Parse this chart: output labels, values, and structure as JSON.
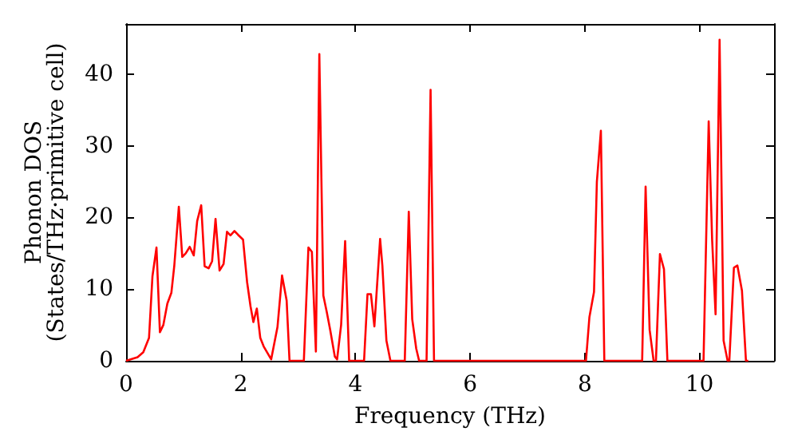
{
  "chart_data": {
    "type": "line",
    "xlabel": "Frequency (THz)",
    "ylabel": "Phonon DOS\n(States/THz·primitive cell)",
    "xlim": [
      0,
      11.3
    ],
    "ylim": [
      0,
      47
    ],
    "xticks": [
      0,
      2,
      4,
      6,
      8,
      10
    ],
    "yticks": [
      0,
      10,
      20,
      30,
      40
    ],
    "marker": "none",
    "series": [
      {
        "color": "#ff0000",
        "x": [
          0,
          0.2,
          0.3,
          0.4,
          0.46,
          0.53,
          0.59,
          0.65,
          0.72,
          0.79,
          0.84,
          0.92,
          0.98,
          1.04,
          1.11,
          1.18,
          1.24,
          1.31,
          1.37,
          1.44,
          1.5,
          1.56,
          1.63,
          1.7,
          1.76,
          1.82,
          1.89,
          1.95,
          2.04,
          2.11,
          2.17,
          2.22,
          2.28,
          2.34,
          2.4,
          2.53,
          2.64,
          2.72,
          2.8,
          2.85,
          3.1,
          3.18,
          3.24,
          3.31,
          3.37,
          3.44,
          3.5,
          3.56,
          3.64,
          3.68,
          3.75,
          3.82,
          3.89,
          4.15,
          4.21,
          4.27,
          4.33,
          4.43,
          4.47,
          4.54,
          4.61,
          4.86,
          4.93,
          4.99,
          5.06,
          5.11,
          5.24,
          5.31,
          5.37,
          8.02,
          8.08,
          8.16,
          8.21,
          8.28,
          8.34,
          9.0,
          9.06,
          9.13,
          9.2,
          9.24,
          9.31,
          9.38,
          9.44,
          10.07,
          10.16,
          10.22,
          10.28,
          10.35,
          10.42,
          10.49,
          10.52,
          10.6,
          10.66,
          10.74,
          10.81,
          10.85
        ],
        "values": [
          0,
          0.5,
          1.2,
          3.2,
          11.8,
          15.8,
          4,
          5,
          8,
          9.5,
          13.2,
          21.5,
          14.5,
          15,
          15.9,
          14.7,
          19.5,
          21.7,
          13.2,
          12.9,
          13.9,
          19.8,
          12.6,
          13.5,
          18,
          17.5,
          18.1,
          17.6,
          16.9,
          11,
          7.6,
          5.4,
          7.3,
          3.2,
          2,
          0.2,
          4.7,
          11.9,
          8.4,
          0,
          0,
          15.8,
          15.2,
          1.3,
          42.8,
          9.1,
          6.8,
          4.3,
          0.6,
          0.2,
          5,
          16.7,
          0,
          0,
          9.3,
          9.3,
          4.8,
          17,
          13.2,
          2.8,
          0,
          0,
          20.8,
          5.8,
          1.7,
          0,
          0,
          37.8,
          0,
          0,
          6.1,
          9.6,
          25,
          32.1,
          0,
          0,
          24.3,
          4.3,
          0,
          0,
          14.9,
          12.8,
          0,
          0,
          33.4,
          16.9,
          6.5,
          44.8,
          2.8,
          0,
          0,
          13,
          13.3,
          9.8,
          0,
          0
        ]
      }
    ]
  }
}
